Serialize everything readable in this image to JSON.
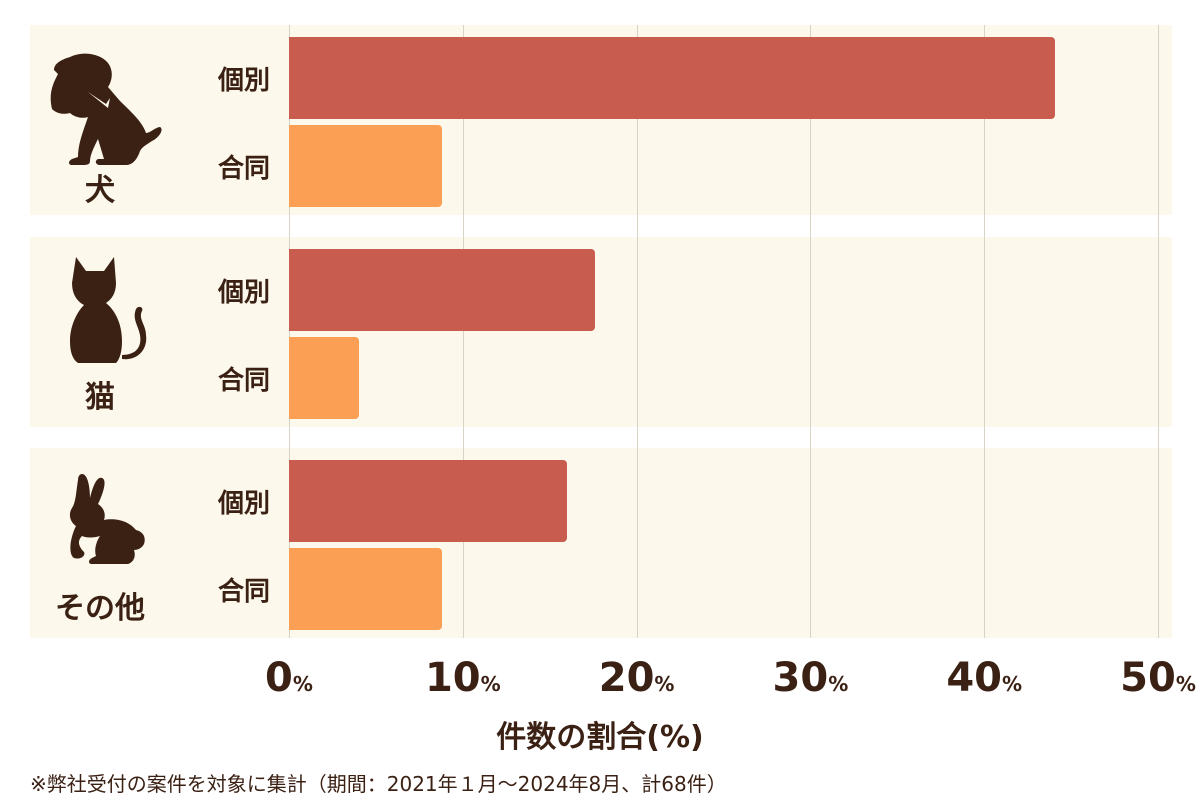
{
  "chart_data": {
    "type": "bar",
    "orientation": "horizontal",
    "xlabel": "件数の割合(%)",
    "xlim": [
      0,
      50
    ],
    "xticks": [
      "0",
      "10",
      "20",
      "30",
      "40",
      "50"
    ],
    "tick_suffix": "%",
    "groups": [
      {
        "name": "犬",
        "icon": "dog-icon",
        "bars": [
          {
            "label": "個別",
            "value": 44.1
          },
          {
            "label": "合同",
            "value": 8.8
          }
        ]
      },
      {
        "name": "猫",
        "icon": "cat-icon",
        "bars": [
          {
            "label": "個別",
            "value": 17.6
          },
          {
            "label": "合同",
            "value": 4.0
          }
        ]
      },
      {
        "name": "その他",
        "icon": "rabbit-icon",
        "bars": [
          {
            "label": "個別",
            "value": 16.0
          },
          {
            "label": "合同",
            "value": 8.8
          }
        ]
      }
    ],
    "colors": {
      "個別": "#c85c4e",
      "合同": "#fb9f54"
    },
    "note": "※弊社受付の案件を対象に集計（期間：2021年１月～2024年8月、計68件）"
  }
}
